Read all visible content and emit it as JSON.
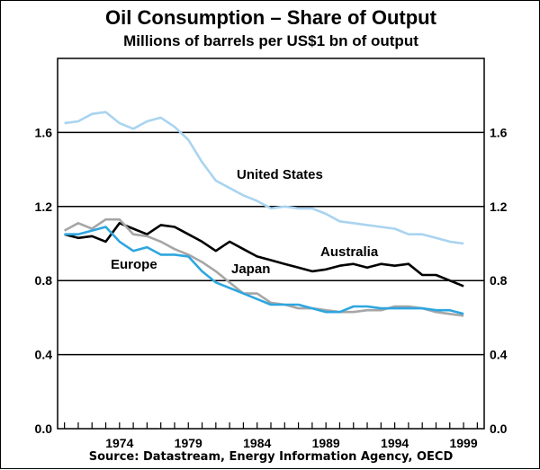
{
  "chart_data": {
    "type": "line",
    "title": "Oil Consumption – Share of Output",
    "subtitle": "Millions of barrels per US$1 bn of output",
    "source": "Source: Datastream, Energy Information Agency, OECD",
    "xlabel": "",
    "ylabel": "",
    "xlim": [
      1969.5,
      2000.5
    ],
    "ylim": [
      0,
      2.0
    ],
    "y_ticks": [
      "0.0",
      "0.4",
      "0.8",
      "1.2",
      "1.6"
    ],
    "y_tick_values": [
      0,
      0.4,
      0.8,
      1.2,
      1.6
    ],
    "x_tick_labels": [
      "1974",
      "1979",
      "1984",
      "1989",
      "1994",
      "1999"
    ],
    "x_tick_values": [
      1974,
      1979,
      1984,
      1989,
      1994,
      1999
    ],
    "gridlines": true,
    "series": [
      {
        "name": "United States",
        "label": "United States",
        "color": "#a9d4f0",
        "x": [
          1970,
          1971,
          1972,
          1973,
          1974,
          1975,
          1976,
          1977,
          1978,
          1979,
          1980,
          1981,
          1982,
          1983,
          1984,
          1985,
          1986,
          1987,
          1988,
          1989,
          1990,
          1991,
          1992,
          1993,
          1994,
          1995,
          1996,
          1997,
          1998,
          1999
        ],
        "values": [
          1.65,
          1.66,
          1.7,
          1.71,
          1.65,
          1.62,
          1.66,
          1.68,
          1.63,
          1.56,
          1.44,
          1.34,
          1.3,
          1.26,
          1.23,
          1.19,
          1.2,
          1.19,
          1.19,
          1.16,
          1.12,
          1.11,
          1.1,
          1.09,
          1.08,
          1.05,
          1.05,
          1.03,
          1.01,
          1.0
        ]
      },
      {
        "name": "Australia",
        "label": "Australia",
        "color": "#000000",
        "x": [
          1970,
          1971,
          1972,
          1973,
          1974,
          1975,
          1976,
          1977,
          1978,
          1979,
          1980,
          1981,
          1982,
          1983,
          1984,
          1985,
          1986,
          1987,
          1988,
          1989,
          1990,
          1991,
          1992,
          1993,
          1994,
          1995,
          1996,
          1997,
          1998,
          1999
        ],
        "values": [
          1.05,
          1.03,
          1.04,
          1.01,
          1.11,
          1.08,
          1.05,
          1.1,
          1.09,
          1.05,
          1.01,
          0.96,
          1.01,
          0.97,
          0.93,
          0.91,
          0.89,
          0.87,
          0.85,
          0.86,
          0.88,
          0.89,
          0.87,
          0.89,
          0.88,
          0.89,
          0.83,
          0.83,
          0.8,
          0.77
        ]
      },
      {
        "name": "Japan",
        "label": "Japan",
        "color": "#a6a6a6",
        "x": [
          1970,
          1971,
          1972,
          1973,
          1974,
          1975,
          1976,
          1977,
          1978,
          1979,
          1980,
          1981,
          1982,
          1983,
          1984,
          1985,
          1986,
          1987,
          1988,
          1989,
          1990,
          1991,
          1992,
          1993,
          1994,
          1995,
          1996,
          1997,
          1998,
          1999
        ],
        "values": [
          1.07,
          1.11,
          1.08,
          1.13,
          1.13,
          1.05,
          1.04,
          1.01,
          0.97,
          0.94,
          0.9,
          0.85,
          0.79,
          0.73,
          0.73,
          0.68,
          0.67,
          0.65,
          0.65,
          0.64,
          0.63,
          0.63,
          0.64,
          0.64,
          0.66,
          0.66,
          0.65,
          0.63,
          0.62,
          0.61
        ]
      },
      {
        "name": "Europe",
        "label": "Europe",
        "color": "#2ea6df",
        "x": [
          1970,
          1971,
          1972,
          1973,
          1974,
          1975,
          1976,
          1977,
          1978,
          1979,
          1980,
          1981,
          1982,
          1983,
          1984,
          1985,
          1986,
          1987,
          1988,
          1989,
          1990,
          1991,
          1992,
          1993,
          1994,
          1995,
          1996,
          1997,
          1998,
          1999
        ],
        "values": [
          1.05,
          1.05,
          1.07,
          1.09,
          1.01,
          0.96,
          0.98,
          0.94,
          0.94,
          0.93,
          0.85,
          0.79,
          0.76,
          0.73,
          0.7,
          0.67,
          0.67,
          0.67,
          0.65,
          0.63,
          0.63,
          0.66,
          0.66,
          0.65,
          0.65,
          0.65,
          0.65,
          0.64,
          0.64,
          0.62
        ]
      }
    ]
  }
}
